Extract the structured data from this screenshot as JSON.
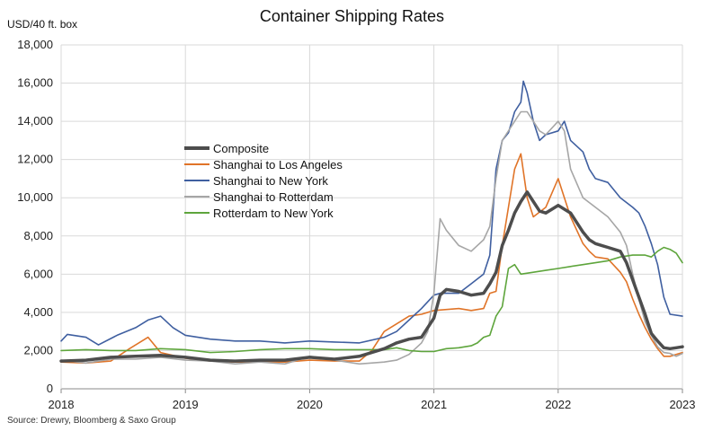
{
  "chart_data": {
    "type": "line",
    "title": "Container Shipping Rates",
    "ylabel": "USD/40 ft. box",
    "xlabel": "",
    "source": "Source: Drewry, Bloomberg & Saxo Group",
    "xlim": [
      2018,
      2023
    ],
    "ylim": [
      0,
      18000
    ],
    "x_ticks": [
      "2018",
      "2019",
      "2020",
      "2021",
      "2022",
      "2023"
    ],
    "y_ticks": [
      "0",
      "2,000",
      "4,000",
      "6,000",
      "8,000",
      "10,000",
      "12,000",
      "14,000",
      "16,000",
      "18,000"
    ],
    "grid": true,
    "legend_position": "center-left",
    "series": [
      {
        "name": "Composite",
        "color": "#4d4d4d",
        "width": 3.5,
        "x": [
          2018.0,
          2018.2,
          2018.4,
          2018.6,
          2018.8,
          2019.0,
          2019.2,
          2019.4,
          2019.6,
          2019.8,
          2020.0,
          2020.2,
          2020.4,
          2020.6,
          2020.7,
          2020.8,
          2020.9,
          2021.0,
          2021.05,
          2021.1,
          2021.2,
          2021.3,
          2021.4,
          2021.45,
          2021.5,
          2021.55,
          2021.6,
          2021.65,
          2021.7,
          2021.75,
          2021.8,
          2021.85,
          2021.9,
          2022.0,
          2022.05,
          2022.1,
          2022.2,
          2022.25,
          2022.3,
          2022.35,
          2022.4,
          2022.5,
          2022.55,
          2022.6,
          2022.65,
          2022.7,
          2022.75,
          2022.8,
          2022.85,
          2022.9,
          2022.95,
          2023.0
        ],
        "y": [
          1450,
          1500,
          1650,
          1700,
          1750,
          1650,
          1500,
          1450,
          1500,
          1500,
          1650,
          1550,
          1700,
          2100,
          2400,
          2600,
          2700,
          3700,
          4900,
          5200,
          5100,
          4900,
          5000,
          5500,
          6100,
          7500,
          8300,
          9200,
          9800,
          10300,
          9800,
          9300,
          9200,
          9600,
          9400,
          9200,
          8200,
          7800,
          7600,
          7500,
          7400,
          7200,
          6600,
          5700,
          4800,
          3900,
          2900,
          2500,
          2150,
          2100,
          2150,
          2200
        ]
      },
      {
        "name": "Shanghai to Los Angeles",
        "color": "#e07428",
        "width": 1.6,
        "x": [
          2018.0,
          2018.2,
          2018.4,
          2018.55,
          2018.7,
          2018.8,
          2018.9,
          2019.0,
          2019.2,
          2019.4,
          2019.6,
          2019.8,
          2020.0,
          2020.2,
          2020.4,
          2020.5,
          2020.6,
          2020.7,
          2020.8,
          2020.9,
          2021.0,
          2021.2,
          2021.3,
          2021.4,
          2021.45,
          2021.5,
          2021.55,
          2021.6,
          2021.65,
          2021.7,
          2021.75,
          2021.8,
          2021.9,
          2022.0,
          2022.05,
          2022.1,
          2022.2,
          2022.25,
          2022.3,
          2022.4,
          2022.5,
          2022.55,
          2022.6,
          2022.65,
          2022.7,
          2022.75,
          2022.8,
          2022.85,
          2022.9,
          2023.0
        ],
        "y": [
          1400,
          1350,
          1450,
          2100,
          2700,
          1900,
          1750,
          1600,
          1450,
          1400,
          1400,
          1400,
          1500,
          1450,
          1450,
          2000,
          3000,
          3400,
          3800,
          3900,
          4100,
          4200,
          4100,
          4200,
          5000,
          5100,
          7500,
          9500,
          11500,
          12300,
          10000,
          9000,
          9500,
          11000,
          10000,
          9000,
          7600,
          7200,
          6900,
          6800,
          6100,
          5600,
          4700,
          3900,
          3200,
          2600,
          2100,
          1700,
          1700,
          1900
        ]
      },
      {
        "name": "Shanghai to New York",
        "color": "#3f5fa0",
        "width": 1.6,
        "x": [
          2018.0,
          2018.05,
          2018.2,
          2018.3,
          2018.45,
          2018.6,
          2018.7,
          2018.8,
          2018.9,
          2019.0,
          2019.2,
          2019.4,
          2019.6,
          2019.8,
          2020.0,
          2020.2,
          2020.4,
          2020.6,
          2020.7,
          2020.8,
          2020.9,
          2021.0,
          2021.05,
          2021.1,
          2021.2,
          2021.3,
          2021.4,
          2021.45,
          2021.5,
          2021.55,
          2021.6,
          2021.65,
          2021.7,
          2021.72,
          2021.75,
          2021.8,
          2021.85,
          2021.9,
          2022.0,
          2022.05,
          2022.1,
          2022.2,
          2022.25,
          2022.3,
          2022.4,
          2022.5,
          2022.6,
          2022.65,
          2022.7,
          2022.75,
          2022.8,
          2022.85,
          2022.9,
          2023.0
        ],
        "y": [
          2500,
          2850,
          2700,
          2300,
          2800,
          3200,
          3600,
          3800,
          3200,
          2800,
          2600,
          2500,
          2500,
          2400,
          2500,
          2450,
          2400,
          2700,
          3000,
          3600,
          4200,
          4900,
          5000,
          5000,
          5000,
          5500,
          6000,
          7000,
          11500,
          13000,
          13400,
          14500,
          15000,
          16100,
          15500,
          14000,
          13000,
          13300,
          13500,
          14000,
          13000,
          12400,
          11500,
          11000,
          10800,
          10000,
          9500,
          9200,
          8500,
          7600,
          6500,
          4800,
          3900,
          3800
        ]
      },
      {
        "name": "Shanghai to Rotterdam",
        "color": "#a6a6a6",
        "width": 1.6,
        "x": [
          2018.0,
          2018.2,
          2018.4,
          2018.6,
          2018.8,
          2019.0,
          2019.2,
          2019.4,
          2019.6,
          2019.8,
          2020.0,
          2020.2,
          2020.4,
          2020.6,
          2020.7,
          2020.8,
          2020.9,
          2020.95,
          2021.0,
          2021.05,
          2021.1,
          2021.2,
          2021.3,
          2021.4,
          2021.45,
          2021.5,
          2021.55,
          2021.6,
          2021.65,
          2021.7,
          2021.75,
          2021.8,
          2021.85,
          2021.9,
          2022.0,
          2022.05,
          2022.1,
          2022.2,
          2022.3,
          2022.4,
          2022.5,
          2022.55,
          2022.6,
          2022.65,
          2022.7,
          2022.75,
          2022.8,
          2022.85,
          2022.9,
          2022.95,
          2023.0
        ],
        "y": [
          1500,
          1350,
          1550,
          1550,
          1650,
          1500,
          1450,
          1300,
          1400,
          1300,
          1700,
          1500,
          1300,
          1400,
          1500,
          1800,
          2400,
          3000,
          5000,
          8900,
          8300,
          7500,
          7200,
          7800,
          8500,
          11000,
          13000,
          13500,
          14000,
          14500,
          14500,
          14000,
          13500,
          13300,
          14000,
          13500,
          11500,
          10000,
          9500,
          9000,
          8200,
          7500,
          6000,
          4700,
          3500,
          2800,
          2200,
          1900,
          1850,
          1700,
          1850
        ]
      },
      {
        "name": "Rotterdam to New York",
        "color": "#5ea53c",
        "width": 1.6,
        "x": [
          2018.0,
          2018.2,
          2018.4,
          2018.6,
          2018.8,
          2019.0,
          2019.2,
          2019.4,
          2019.6,
          2019.8,
          2020.0,
          2020.2,
          2020.4,
          2020.6,
          2020.7,
          2020.8,
          2020.9,
          2021.0,
          2021.1,
          2021.2,
          2021.3,
          2021.35,
          2021.4,
          2021.45,
          2021.5,
          2021.55,
          2021.6,
          2021.65,
          2021.7,
          2021.8,
          2021.9,
          2022.0,
          2022.1,
          2022.2,
          2022.3,
          2022.4,
          2022.5,
          2022.6,
          2022.7,
          2022.75,
          2022.8,
          2022.85,
          2022.9,
          2022.95,
          2023.0
        ],
        "y": [
          2000,
          2050,
          2000,
          2000,
          2100,
          2050,
          1900,
          1950,
          2050,
          2100,
          2100,
          2050,
          2050,
          2050,
          2150,
          2000,
          1950,
          1950,
          2100,
          2150,
          2250,
          2400,
          2700,
          2800,
          3800,
          4300,
          6300,
          6500,
          6000,
          6100,
          6200,
          6300,
          6400,
          6500,
          6600,
          6700,
          6900,
          7000,
          7000,
          6900,
          7200,
          7400,
          7300,
          7100,
          6600
        ]
      }
    ]
  }
}
